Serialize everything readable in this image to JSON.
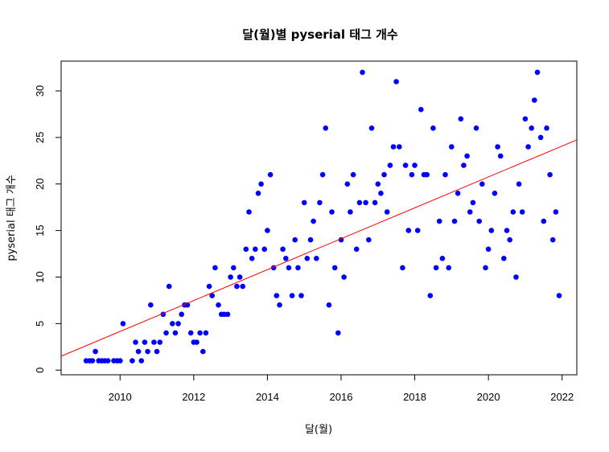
{
  "chart_data": {
    "type": "scatter",
    "title": "달(월)별 pyserial 태그 개수",
    "xlabel": "달(월)",
    "ylabel": "pyserial 태그 개수",
    "xlim": [
      2008.4,
      2022.4
    ],
    "ylim": [
      -0.5,
      33.2
    ],
    "x_ticks": [
      2010,
      2012,
      2014,
      2016,
      2018,
      2020,
      2022
    ],
    "y_ticks": [
      0,
      5,
      10,
      15,
      20,
      25,
      30
    ],
    "point_color": "#0000ff",
    "trend_line": {
      "color": "#ff0000",
      "intercept_at_2008_4": 1.5,
      "slope": 1.66
    },
    "grid": false,
    "legend": "none",
    "points": [
      [
        2009.08,
        1
      ],
      [
        2009.17,
        1
      ],
      [
        2009.25,
        1
      ],
      [
        2009.33,
        2
      ],
      [
        2009.42,
        1
      ],
      [
        2009.5,
        1
      ],
      [
        2009.58,
        1
      ],
      [
        2009.67,
        1
      ],
      [
        2009.83,
        1
      ],
      [
        2009.92,
        1
      ],
      [
        2010.0,
        1
      ],
      [
        2010.08,
        5
      ],
      [
        2010.33,
        1
      ],
      [
        2010.42,
        3
      ],
      [
        2010.5,
        2
      ],
      [
        2010.58,
        1
      ],
      [
        2010.67,
        3
      ],
      [
        2010.75,
        2
      ],
      [
        2010.83,
        7
      ],
      [
        2010.92,
        3
      ],
      [
        2011.0,
        2
      ],
      [
        2011.08,
        3
      ],
      [
        2011.17,
        6
      ],
      [
        2011.25,
        4
      ],
      [
        2011.33,
        9
      ],
      [
        2011.42,
        5
      ],
      [
        2011.5,
        4
      ],
      [
        2011.58,
        5
      ],
      [
        2011.67,
        6
      ],
      [
        2011.75,
        7
      ],
      [
        2011.83,
        7
      ],
      [
        2011.92,
        4
      ],
      [
        2012.0,
        3
      ],
      [
        2012.08,
        3
      ],
      [
        2012.17,
        4
      ],
      [
        2012.25,
        2
      ],
      [
        2012.33,
        4
      ],
      [
        2012.42,
        9
      ],
      [
        2012.5,
        8
      ],
      [
        2012.58,
        11
      ],
      [
        2012.67,
        7
      ],
      [
        2012.75,
        6
      ],
      [
        2012.83,
        6
      ],
      [
        2012.92,
        6
      ],
      [
        2013.0,
        10
      ],
      [
        2013.08,
        11
      ],
      [
        2013.17,
        9
      ],
      [
        2013.25,
        10
      ],
      [
        2013.33,
        9
      ],
      [
        2013.42,
        13
      ],
      [
        2013.5,
        17
      ],
      [
        2013.58,
        12
      ],
      [
        2013.67,
        13
      ],
      [
        2013.75,
        19
      ],
      [
        2013.83,
        20
      ],
      [
        2013.92,
        13
      ],
      [
        2014.0,
        15
      ],
      [
        2014.08,
        21
      ],
      [
        2014.17,
        11
      ],
      [
        2014.25,
        8
      ],
      [
        2014.33,
        7
      ],
      [
        2014.42,
        13
      ],
      [
        2014.5,
        12
      ],
      [
        2014.58,
        11
      ],
      [
        2014.67,
        8
      ],
      [
        2014.75,
        14
      ],
      [
        2014.83,
        11
      ],
      [
        2014.92,
        8
      ],
      [
        2015.0,
        18
      ],
      [
        2015.08,
        12
      ],
      [
        2015.17,
        14
      ],
      [
        2015.25,
        16
      ],
      [
        2015.33,
        12
      ],
      [
        2015.42,
        18
      ],
      [
        2015.5,
        21
      ],
      [
        2015.58,
        26
      ],
      [
        2015.67,
        7
      ],
      [
        2015.75,
        17
      ],
      [
        2015.83,
        11
      ],
      [
        2015.92,
        4
      ],
      [
        2016.0,
        14
      ],
      [
        2016.08,
        10
      ],
      [
        2016.17,
        20
      ],
      [
        2016.25,
        17
      ],
      [
        2016.33,
        21
      ],
      [
        2016.42,
        13
      ],
      [
        2016.5,
        18
      ],
      [
        2016.58,
        32
      ],
      [
        2016.67,
        18
      ],
      [
        2016.75,
        14
      ],
      [
        2016.83,
        26
      ],
      [
        2016.92,
        18
      ],
      [
        2017.0,
        20
      ],
      [
        2017.08,
        19
      ],
      [
        2017.17,
        21
      ],
      [
        2017.25,
        17
      ],
      [
        2017.33,
        22
      ],
      [
        2017.42,
        24
      ],
      [
        2017.5,
        31
      ],
      [
        2017.58,
        24
      ],
      [
        2017.67,
        11
      ],
      [
        2017.75,
        22
      ],
      [
        2017.83,
        15
      ],
      [
        2017.92,
        21
      ],
      [
        2018.0,
        22
      ],
      [
        2018.08,
        15
      ],
      [
        2018.17,
        28
      ],
      [
        2018.25,
        21
      ],
      [
        2018.33,
        21
      ],
      [
        2018.42,
        8
      ],
      [
        2018.5,
        26
      ],
      [
        2018.58,
        11
      ],
      [
        2018.67,
        16
      ],
      [
        2018.75,
        12
      ],
      [
        2018.83,
        21
      ],
      [
        2018.92,
        11
      ],
      [
        2019.0,
        24
      ],
      [
        2019.08,
        16
      ],
      [
        2019.17,
        19
      ],
      [
        2019.25,
        27
      ],
      [
        2019.33,
        22
      ],
      [
        2019.42,
        23
      ],
      [
        2019.5,
        17
      ],
      [
        2019.58,
        18
      ],
      [
        2019.67,
        26
      ],
      [
        2019.75,
        16
      ],
      [
        2019.83,
        20
      ],
      [
        2019.92,
        11
      ],
      [
        2020.0,
        13
      ],
      [
        2020.08,
        15
      ],
      [
        2020.17,
        19
      ],
      [
        2020.25,
        24
      ],
      [
        2020.33,
        23
      ],
      [
        2020.42,
        12
      ],
      [
        2020.5,
        15
      ],
      [
        2020.58,
        14
      ],
      [
        2020.67,
        17
      ],
      [
        2020.75,
        10
      ],
      [
        2020.83,
        20
      ],
      [
        2020.92,
        17
      ],
      [
        2021.0,
        27
      ],
      [
        2021.08,
        24
      ],
      [
        2021.17,
        26
      ],
      [
        2021.25,
        29
      ],
      [
        2021.33,
        32
      ],
      [
        2021.42,
        25
      ],
      [
        2021.5,
        16
      ],
      [
        2021.58,
        26
      ],
      [
        2021.67,
        21
      ],
      [
        2021.75,
        14
      ],
      [
        2021.83,
        17
      ],
      [
        2021.92,
        8
      ]
    ]
  }
}
